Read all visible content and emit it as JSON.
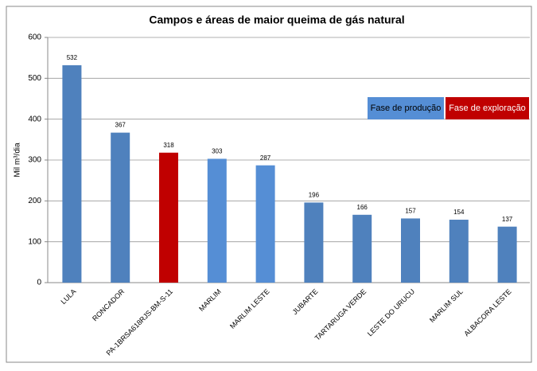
{
  "chart_data": {
    "type": "bar",
    "title": "Campos e áreas de maior queima de gás natural",
    "y_label": "Mil m³/dia",
    "categories": [
      "LULA",
      "RONCADOR",
      "PA-1BRSA618RJS-BM-S-11",
      "MARLIM",
      "MARLIM LESTE",
      "JUBARTE",
      "TARTARUGA VERDE",
      "LESTE DO URUCU",
      "MARLIM SUL",
      "ALBACORA LESTE"
    ],
    "values": [
      532,
      367,
      318,
      303,
      287,
      196,
      166,
      157,
      154,
      137
    ],
    "colors": [
      "#4f81bd",
      "#4f81bd",
      "#c00000",
      "#558ed5",
      "#558ed5",
      "#4f81bd",
      "#4f81bd",
      "#4f81bd",
      "#4f81bd",
      "#4f81bd"
    ],
    "legend": [
      {
        "name": "Fase de produção",
        "color": "#558ed5"
      },
      {
        "name": "Fase de exploração",
        "color": "#c00000"
      }
    ],
    "ylim": [
      0,
      600
    ],
    "yticks": [
      0,
      100,
      200,
      300,
      400,
      500,
      600
    ],
    "grid": true
  }
}
